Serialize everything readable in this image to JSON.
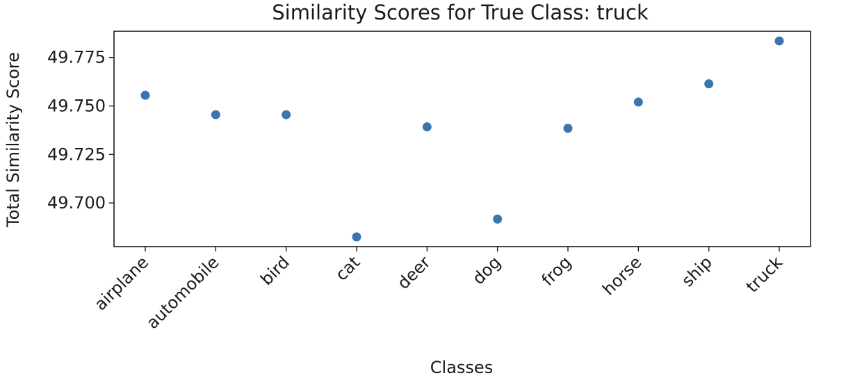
{
  "chart_data": {
    "type": "scatter",
    "title": "Similarity Scores for True Class: truck",
    "xlabel": "Classes",
    "ylabel": "Total Similarity Score",
    "categories": [
      "airplane",
      "automobile",
      "bird",
      "cat",
      "deer",
      "dog",
      "frog",
      "horse",
      "ship",
      "truck"
    ],
    "series": [
      {
        "values": [
          49.7555,
          49.7455,
          49.7455,
          49.6825,
          49.7392,
          49.6917,
          49.7385,
          49.752,
          49.7614,
          49.7835
        ]
      }
    ],
    "y_ticks": [
      "49.700",
      "49.725",
      "49.750",
      "49.775"
    ],
    "ylim": [
      49.6775,
      49.7885
    ],
    "grid": false,
    "legend": "none",
    "marker_color": "#3b75af"
  }
}
